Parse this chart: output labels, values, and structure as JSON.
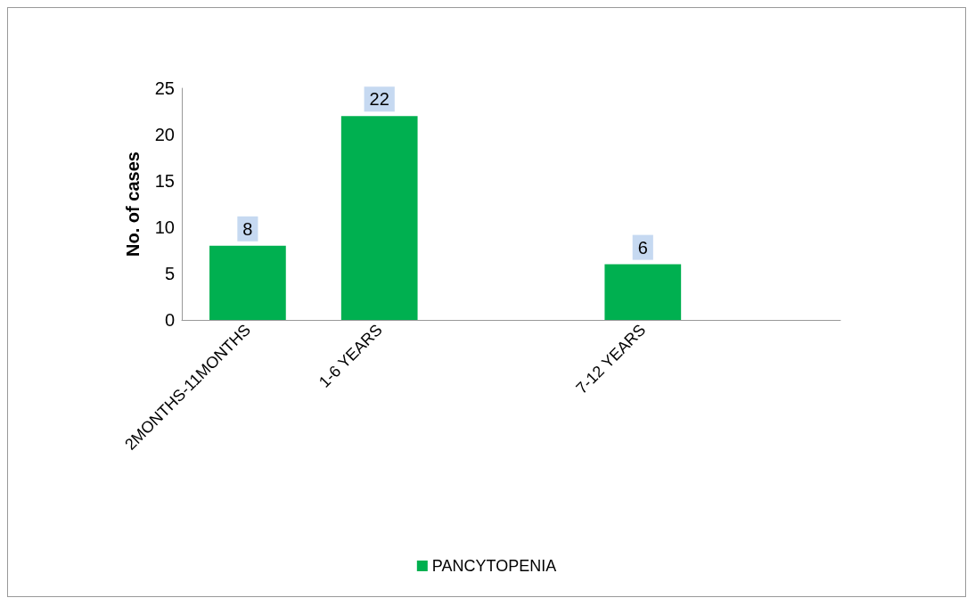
{
  "chart_data": {
    "type": "bar",
    "ylabel": "No. of cases",
    "categories": [
      "2MONTHS-11MONTHS",
      "1-6 YEARS",
      null,
      "7-12 YEARS",
      null
    ],
    "series": [
      {
        "name": "PANCYTOPENIA",
        "color": "#00b050",
        "values": [
          8,
          22,
          null,
          6,
          null
        ]
      }
    ],
    "ylim": [
      0,
      25
    ],
    "yticks": [
      0,
      5,
      10,
      15,
      20,
      25
    ],
    "grid": false,
    "legend": "bottom",
    "data_labels": true
  }
}
